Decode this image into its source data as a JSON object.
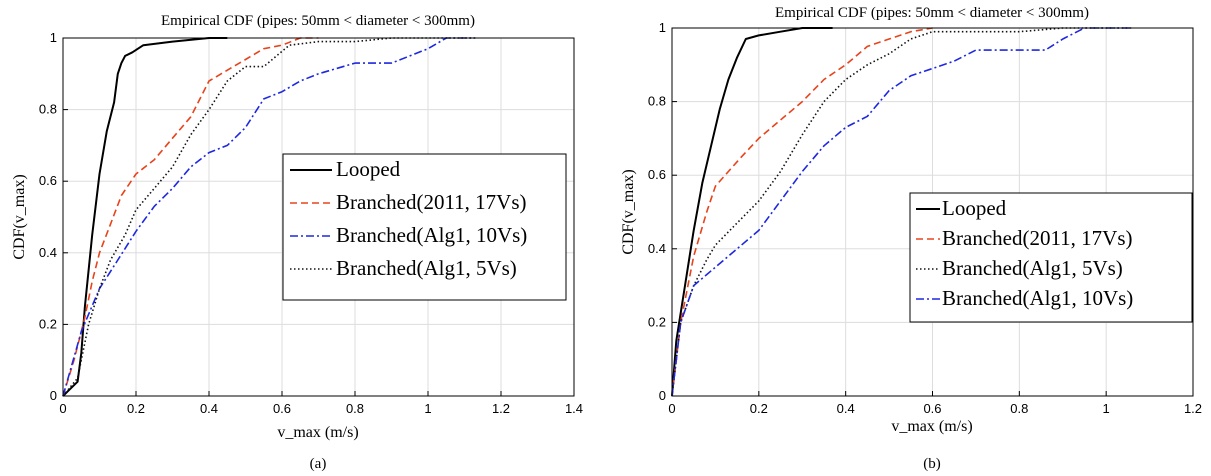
{
  "chart_data": [
    {
      "type": "line",
      "title": "Empirical CDF (pipes: 50mm < diameter < 300mm)",
      "xlabel": "v_max (m/s)",
      "ylabel": "CDF(v_max)",
      "xlim": [
        0,
        1.4
      ],
      "ylim": [
        0,
        1
      ],
      "xticks": [
        "0",
        "0.2",
        "0.4",
        "0.6",
        "0.8",
        "1",
        "1.2",
        "1.4"
      ],
      "yticks": [
        "0",
        "0.2",
        "0.4",
        "0.6",
        "0.8",
        "1"
      ],
      "grid": true,
      "legend_position": "center-right",
      "panel_label": "(a)",
      "series": [
        {
          "name": "Looped",
          "color": "#000000",
          "style": "solid",
          "x": [
            0,
            0.02,
            0.04,
            0.05,
            0.06,
            0.08,
            0.1,
            0.12,
            0.14,
            0.15,
            0.16,
            0.17,
            0.19,
            0.22,
            0.3,
            0.4,
            0.45
          ],
          "y": [
            0,
            0.02,
            0.04,
            0.12,
            0.25,
            0.45,
            0.62,
            0.74,
            0.82,
            0.9,
            0.93,
            0.95,
            0.96,
            0.98,
            0.99,
            1.0,
            1.0
          ]
        },
        {
          "name": "Branched(2011, 17Vs)",
          "color": "#e8431c",
          "style": "dashed",
          "x": [
            0,
            0.03,
            0.06,
            0.08,
            0.1,
            0.13,
            0.16,
            0.2,
            0.25,
            0.3,
            0.35,
            0.4,
            0.45,
            0.5,
            0.55,
            0.6,
            0.65,
            0.7
          ],
          "y": [
            0,
            0.1,
            0.22,
            0.32,
            0.4,
            0.48,
            0.56,
            0.62,
            0.66,
            0.72,
            0.78,
            0.88,
            0.91,
            0.94,
            0.97,
            0.98,
            1.0,
            1.0
          ]
        },
        {
          "name": "Branched(Alg1, 10Vs)",
          "color": "#1e28e0",
          "style": "dashdot",
          "x": [
            0,
            0.05,
            0.1,
            0.15,
            0.2,
            0.25,
            0.3,
            0.35,
            0.4,
            0.45,
            0.5,
            0.55,
            0.6,
            0.65,
            0.7,
            0.8,
            0.9,
            0.95,
            1.0,
            1.05,
            1.13
          ],
          "y": [
            0,
            0.18,
            0.3,
            0.38,
            0.46,
            0.53,
            0.58,
            0.64,
            0.68,
            0.7,
            0.75,
            0.83,
            0.85,
            0.88,
            0.9,
            0.93,
            0.93,
            0.95,
            0.97,
            1.0,
            1.0
          ]
        },
        {
          "name": "Branched(Alg1, 5Vs)",
          "color": "#111111",
          "style": "dotted",
          "x": [
            0,
            0.04,
            0.07,
            0.1,
            0.13,
            0.17,
            0.2,
            0.25,
            0.3,
            0.35,
            0.4,
            0.45,
            0.5,
            0.55,
            0.62,
            0.7,
            0.8,
            0.9,
            1.0,
            1.13
          ],
          "y": [
            0,
            0.05,
            0.2,
            0.3,
            0.38,
            0.45,
            0.52,
            0.58,
            0.64,
            0.73,
            0.8,
            0.88,
            0.92,
            0.92,
            0.98,
            0.99,
            0.99,
            1.0,
            1.0,
            1.0
          ]
        }
      ]
    },
    {
      "type": "line",
      "title": "Empirical CDF (pipes: 50mm < diameter < 300mm)",
      "xlabel": "v_max (m/s)",
      "ylabel": "CDF(v_max)",
      "xlim": [
        0,
        1.2
      ],
      "ylim": [
        0,
        1
      ],
      "xticks": [
        "0",
        "0.2",
        "0.4",
        "0.6",
        "0.8",
        "1",
        "1.2"
      ],
      "yticks": [
        "0",
        "0.2",
        "0.4",
        "0.6",
        "0.8",
        "1"
      ],
      "grid": true,
      "legend_position": "bottom-right",
      "panel_label": "(b)",
      "series": [
        {
          "name": "Looped",
          "color": "#000000",
          "style": "solid",
          "x": [
            0,
            0.01,
            0.03,
            0.05,
            0.07,
            0.09,
            0.11,
            0.13,
            0.15,
            0.17,
            0.2,
            0.25,
            0.3,
            0.37
          ],
          "y": [
            0,
            0.15,
            0.3,
            0.45,
            0.58,
            0.68,
            0.78,
            0.86,
            0.92,
            0.97,
            0.98,
            0.99,
            1.0,
            1.0
          ]
        },
        {
          "name": "Branched(2011, 17Vs)",
          "color": "#e8431c",
          "style": "dashed",
          "x": [
            0,
            0.02,
            0.05,
            0.08,
            0.1,
            0.13,
            0.16,
            0.2,
            0.25,
            0.3,
            0.35,
            0.4,
            0.45,
            0.5,
            0.55,
            0.6
          ],
          "y": [
            0,
            0.2,
            0.38,
            0.5,
            0.57,
            0.61,
            0.65,
            0.7,
            0.75,
            0.8,
            0.86,
            0.9,
            0.95,
            0.97,
            0.99,
            1.0
          ]
        },
        {
          "name": "Branched(Alg1, 5Vs)",
          "color": "#111111",
          "style": "dotted",
          "x": [
            0,
            0.02,
            0.05,
            0.08,
            0.1,
            0.15,
            0.2,
            0.25,
            0.3,
            0.35,
            0.4,
            0.45,
            0.5,
            0.55,
            0.6,
            0.7,
            0.8,
            0.9,
            0.96,
            1.06
          ],
          "y": [
            0,
            0.2,
            0.3,
            0.37,
            0.41,
            0.47,
            0.53,
            0.61,
            0.71,
            0.8,
            0.86,
            0.9,
            0.93,
            0.97,
            0.99,
            0.99,
            0.99,
            1.0,
            1.0,
            1.0
          ]
        },
        {
          "name": "Branched(Alg1, 10Vs)",
          "color": "#1e28e0",
          "style": "dashdot",
          "x": [
            0,
            0.02,
            0.05,
            0.1,
            0.15,
            0.2,
            0.25,
            0.3,
            0.35,
            0.4,
            0.45,
            0.5,
            0.55,
            0.6,
            0.65,
            0.7,
            0.8,
            0.86,
            0.9,
            0.95,
            1.06
          ],
          "y": [
            0,
            0.2,
            0.3,
            0.35,
            0.4,
            0.45,
            0.53,
            0.61,
            0.68,
            0.73,
            0.76,
            0.83,
            0.87,
            0.89,
            0.91,
            0.94,
            0.94,
            0.94,
            0.97,
            1.0,
            1.0
          ]
        }
      ]
    }
  ]
}
